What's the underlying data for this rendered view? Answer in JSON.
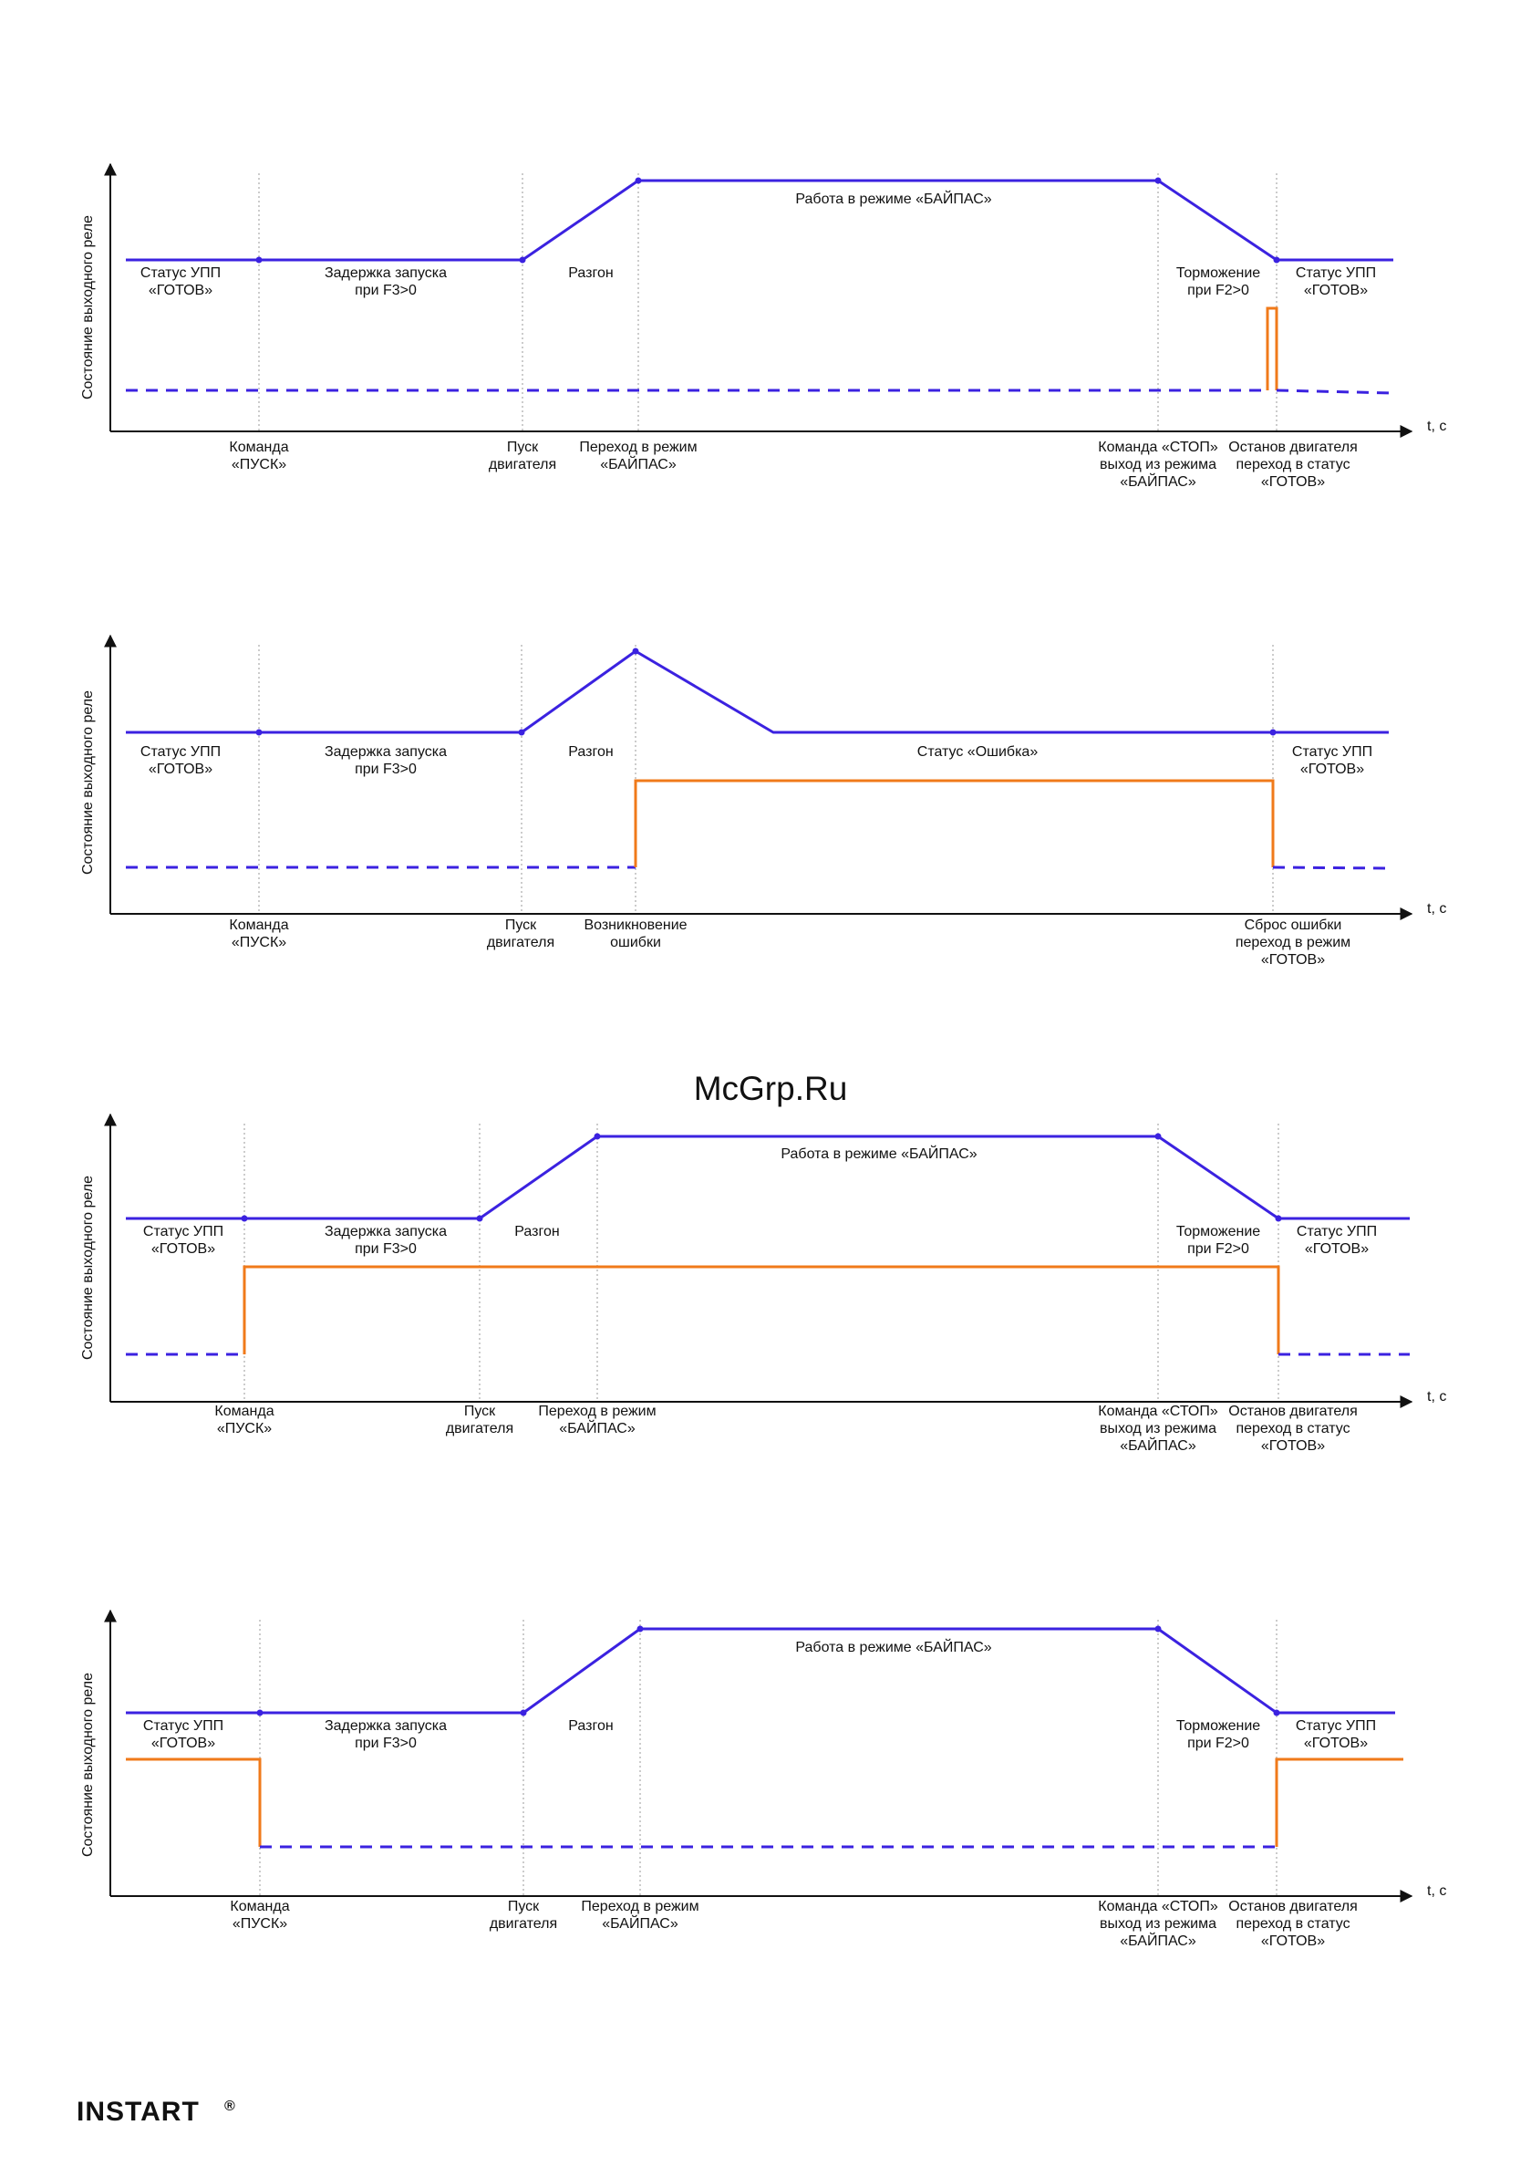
{
  "colors": {
    "motor": "#3b22e0",
    "relay_active": "#f07a1a",
    "relay_inactive": "#3b22e0",
    "axis": "#111111",
    "guide": "#9a9a9a",
    "watermark": "#c8102e",
    "brand": "#b8b8b8"
  },
  "watermark": "McGrp.Ru",
  "brand": "INSTART",
  "brand_mark": "®",
  "diagrams": [
    {
      "ylabel": "Состояние выходного реле",
      "xlabel": "t, c",
      "phase_labels": [
        [
          "Статус УПП",
          "«ГОТОВ»"
        ],
        [
          "Задержка запуска",
          "при F3>0"
        ],
        [
          "Разгон"
        ],
        [
          "Работа в режиме «БАЙПАС»"
        ],
        [
          "Торможение",
          "при F2>0"
        ],
        [
          "Статус УПП",
          "«ГОТОВ»"
        ]
      ],
      "event_labels": [
        [
          "Команда",
          "«ПУСК»"
        ],
        [
          "Пуск",
          "двигателя"
        ],
        [
          "Переход в режим",
          "«БАЙПАС»"
        ],
        [
          "Команда «СТОП»",
          "выход из режима",
          "«БАЙПАС»"
        ],
        [
          "Останов двигателя",
          "переход в статус",
          "«ГОТОВ»"
        ]
      ]
    },
    {
      "ylabel": "Состояние выходного реле",
      "xlabel": "t, c",
      "phase_labels": [
        [
          "Статус УПП",
          "«ГОТОВ»"
        ],
        [
          "Задержка запуска",
          "при F3>0"
        ],
        [
          "Разгон"
        ],
        [
          "Статус «Ошибка»"
        ],
        [
          "Статус УПП",
          "«ГОТОВ»"
        ]
      ],
      "event_labels": [
        [
          "Команда",
          "«ПУСК»"
        ],
        [
          "Пуск",
          "двигателя"
        ],
        [
          "Возникновение",
          "ошибки"
        ],
        [
          "Сброс ошибки",
          "переход в режим",
          "«ГОТОВ»"
        ]
      ]
    },
    {
      "ylabel": "Состояние выходного реле",
      "xlabel": "t, c",
      "phase_labels": [
        [
          "Статус УПП",
          "«ГОТОВ»"
        ],
        [
          "Задержка запуска",
          "при F3>0"
        ],
        [
          "Разгон"
        ],
        [
          "Работа в режиме «БАЙПАС»"
        ],
        [
          "Торможение",
          "при F2>0"
        ],
        [
          "Статус УПП",
          "«ГОТОВ»"
        ]
      ],
      "event_labels": [
        [
          "Команда",
          "«ПУСК»"
        ],
        [
          "Пуск",
          "двигателя"
        ],
        [
          "Переход в режим",
          "«БАЙПАС»"
        ],
        [
          "Команда «СТОП»",
          "выход из режима",
          "«БАЙПАС»"
        ],
        [
          "Останов двигателя",
          "переход в статус",
          "«ГОТОВ»"
        ]
      ]
    },
    {
      "ylabel": "Состояние выходного реле",
      "xlabel": "t, c",
      "phase_labels": [
        [
          "Статус УПП",
          "«ГОТОВ»"
        ],
        [
          "Задержка запуска",
          "при F3>0"
        ],
        [
          "Разгон"
        ],
        [
          "Работа в режиме «БАЙПАС»"
        ],
        [
          "Торможение",
          "при F2>0"
        ],
        [
          "Статус УПП",
          "«ГОТОВ»"
        ]
      ],
      "event_labels": [
        [
          "Команда",
          "«ПУСК»"
        ],
        [
          "Пуск",
          "двигателя"
        ],
        [
          "Переход в режим",
          "«БАЙПАС»"
        ],
        [
          "Команда «СТОП»",
          "выход из режима",
          "«БАЙПАС»"
        ],
        [
          "Останов двигателя",
          "переход в статус",
          "«ГОТОВ»"
        ]
      ]
    }
  ]
}
